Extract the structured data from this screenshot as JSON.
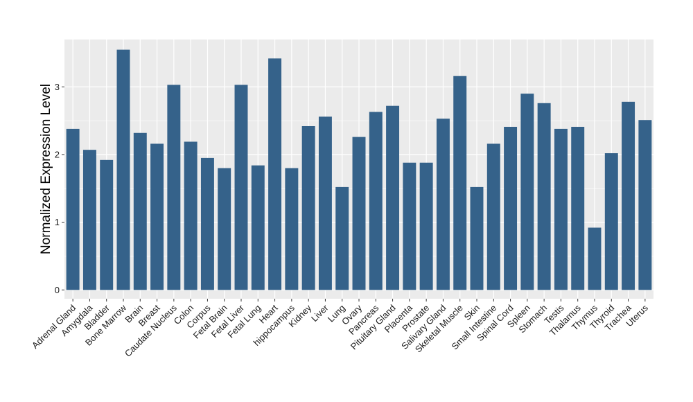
{
  "chart_data": {
    "type": "bar",
    "title": "",
    "xlabel": "",
    "ylabel": "Normalized Expression Level",
    "ylim": [
      -0.13,
      3.7
    ],
    "yticks": [
      0,
      1,
      2,
      3
    ],
    "grid": true,
    "legend": "none",
    "colors": {
      "bar": "#35628A",
      "panel": "#EBEBEB",
      "grid": "#FFFFFF"
    },
    "categories": [
      "Adrenal Gland",
      "Amygdala",
      "Bladder",
      "Bone Marrow",
      "Brain",
      "Breast",
      "Caudate Nucleus",
      "Colon",
      "Corpus",
      "Fetal Brain",
      "Fetal Liver",
      "Fetal Lung",
      "Heart",
      "hippocampus",
      "Kidney",
      "Liver",
      "Lung",
      "Ovary",
      "Pancreas",
      "Pituitary Gland",
      "Placenta",
      "Prostate",
      "Salivary Gland",
      "Skeletal Muscle",
      "Skin",
      "Small Intestine",
      "Spinal Cord",
      "Spleen",
      "Stomach",
      "Testis",
      "Thalamus",
      "Thymus",
      "Thyroid",
      "Trachea",
      "Uterus"
    ],
    "values": [
      2.38,
      2.07,
      1.92,
      3.55,
      2.32,
      2.16,
      3.03,
      2.19,
      1.95,
      1.8,
      3.03,
      1.84,
      3.42,
      1.8,
      2.42,
      2.56,
      1.52,
      2.26,
      2.63,
      2.72,
      1.88,
      1.88,
      2.53,
      3.16,
      1.52,
      2.16,
      2.41,
      2.9,
      2.76,
      2.38,
      2.41,
      0.92,
      2.02,
      2.78,
      2.51
    ]
  }
}
